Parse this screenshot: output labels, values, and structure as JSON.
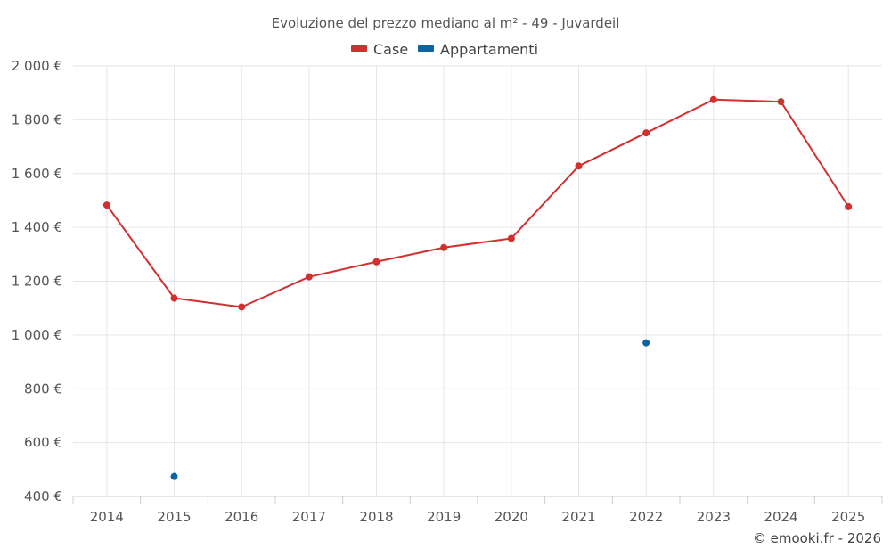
{
  "chart_data": {
    "type": "line",
    "title": "Evoluzione del prezzo mediano al m² - 49 - Juvardeil",
    "categories": [
      "2014",
      "2015",
      "2016",
      "2017",
      "2018",
      "2019",
      "2020",
      "2021",
      "2022",
      "2023",
      "2024",
      "2025"
    ],
    "series": [
      {
        "name": "Case",
        "color": "#d32f2f",
        "values": [
          1483,
          1137,
          1104,
          1216,
          1272,
          1325,
          1359,
          1628,
          1751,
          1875,
          1867,
          1477
        ]
      },
      {
        "name": "Appartamenti",
        "color": "#0b63a1",
        "values": [
          null,
          474,
          null,
          null,
          null,
          null,
          null,
          null,
          971,
          null,
          null,
          null
        ]
      }
    ],
    "ylim": [
      400,
      2000
    ],
    "yticks": [
      400,
      600,
      800,
      1000,
      1200,
      1400,
      1600,
      1800,
      2000
    ],
    "ytick_labels": [
      "400 €",
      "600 €",
      "800 €",
      "1 000 €",
      "1 200 €",
      "1 400 €",
      "1 600 €",
      "1 800 €",
      "2 000 €"
    ],
    "xlabel": "",
    "ylabel": "",
    "grid": true,
    "legend_position": "top-center"
  },
  "credit": "© emooki.fr - 2026"
}
